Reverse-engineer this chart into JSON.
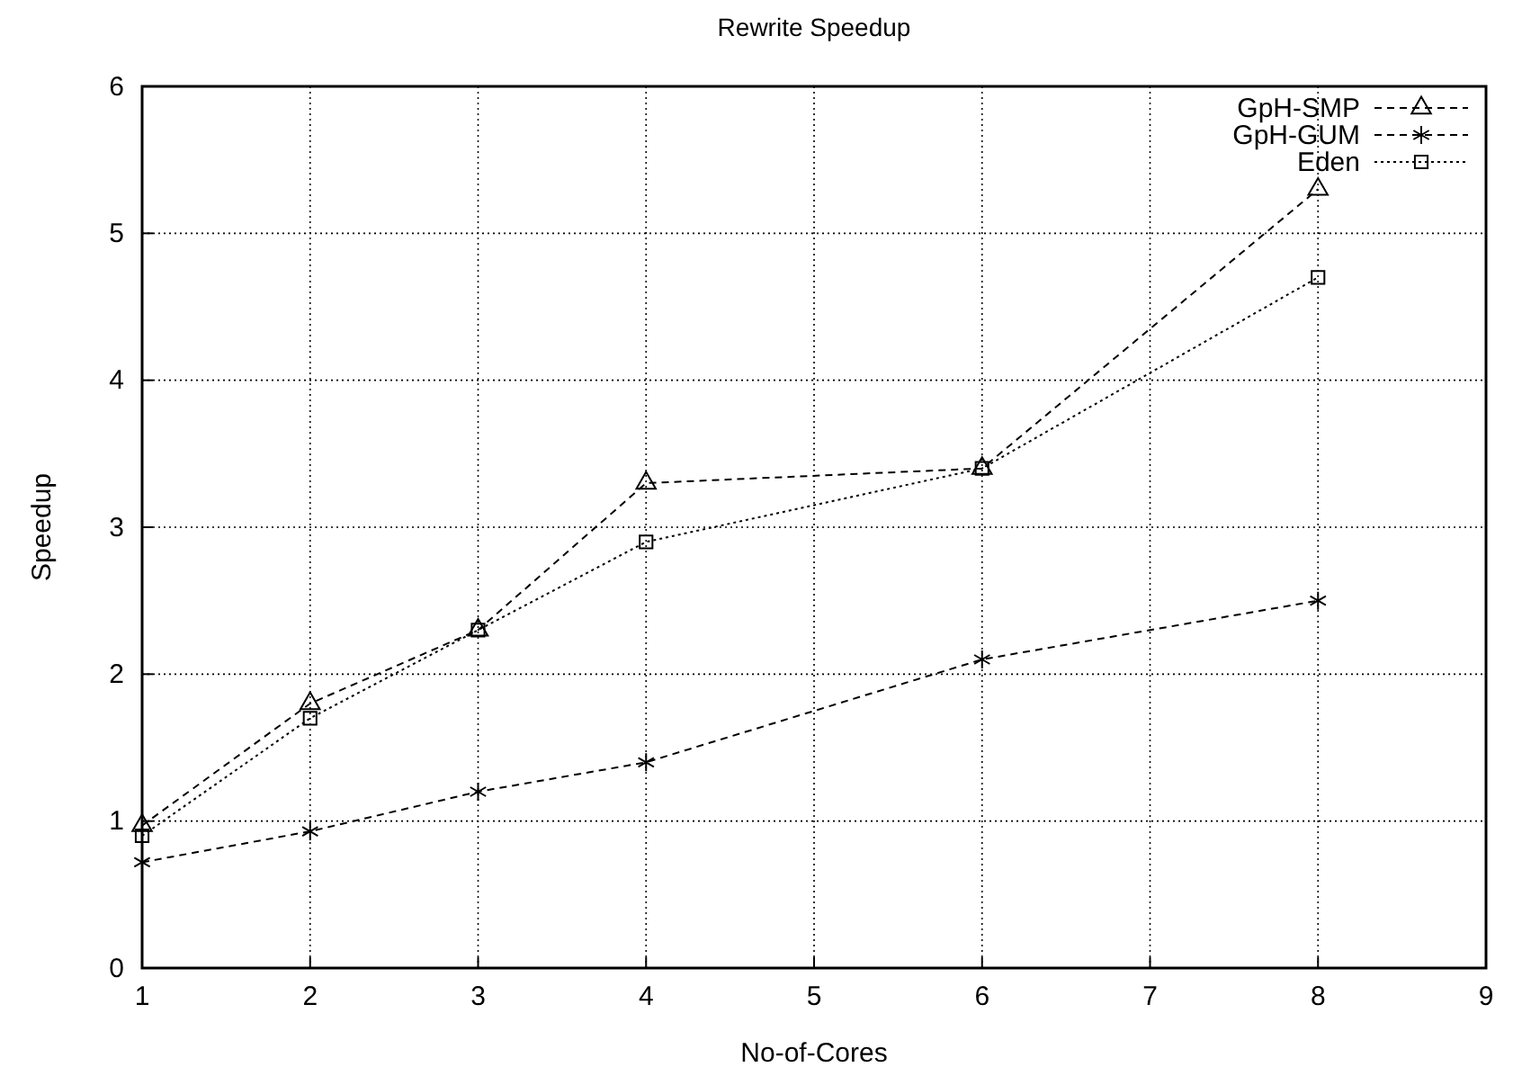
{
  "chart_data": {
    "type": "line",
    "title": "Rewrite  Speedup",
    "xlabel": "No-of-Cores",
    "ylabel": "Speedup",
    "x": [
      1,
      2,
      3,
      4,
      6,
      8
    ],
    "series": [
      {
        "name": "GpH-SMP",
        "color": "#000000",
        "values": [
          0.97,
          1.8,
          2.3,
          3.3,
          3.4,
          5.3
        ],
        "marker": "triangle",
        "line_style": "dashed"
      },
      {
        "name": "GpH-GUM",
        "color": "#000000",
        "values": [
          0.72,
          0.93,
          1.2,
          1.4,
          2.1,
          2.5
        ],
        "marker": "cross",
        "line_style": "dashed"
      },
      {
        "name": "Eden",
        "color": "#000000",
        "values": [
          0.9,
          1.7,
          2.3,
          2.9,
          3.4,
          4.7
        ],
        "marker": "square",
        "line_style": "dotted"
      }
    ],
    "xlim": [
      1,
      9
    ],
    "xticks": [
      1,
      2,
      3,
      4,
      5,
      6,
      7,
      8,
      9
    ],
    "ylim": [
      0,
      6
    ],
    "yticks": [
      0,
      1,
      2,
      3,
      4,
      5,
      6
    ],
    "grid": true,
    "legend": "top right"
  }
}
